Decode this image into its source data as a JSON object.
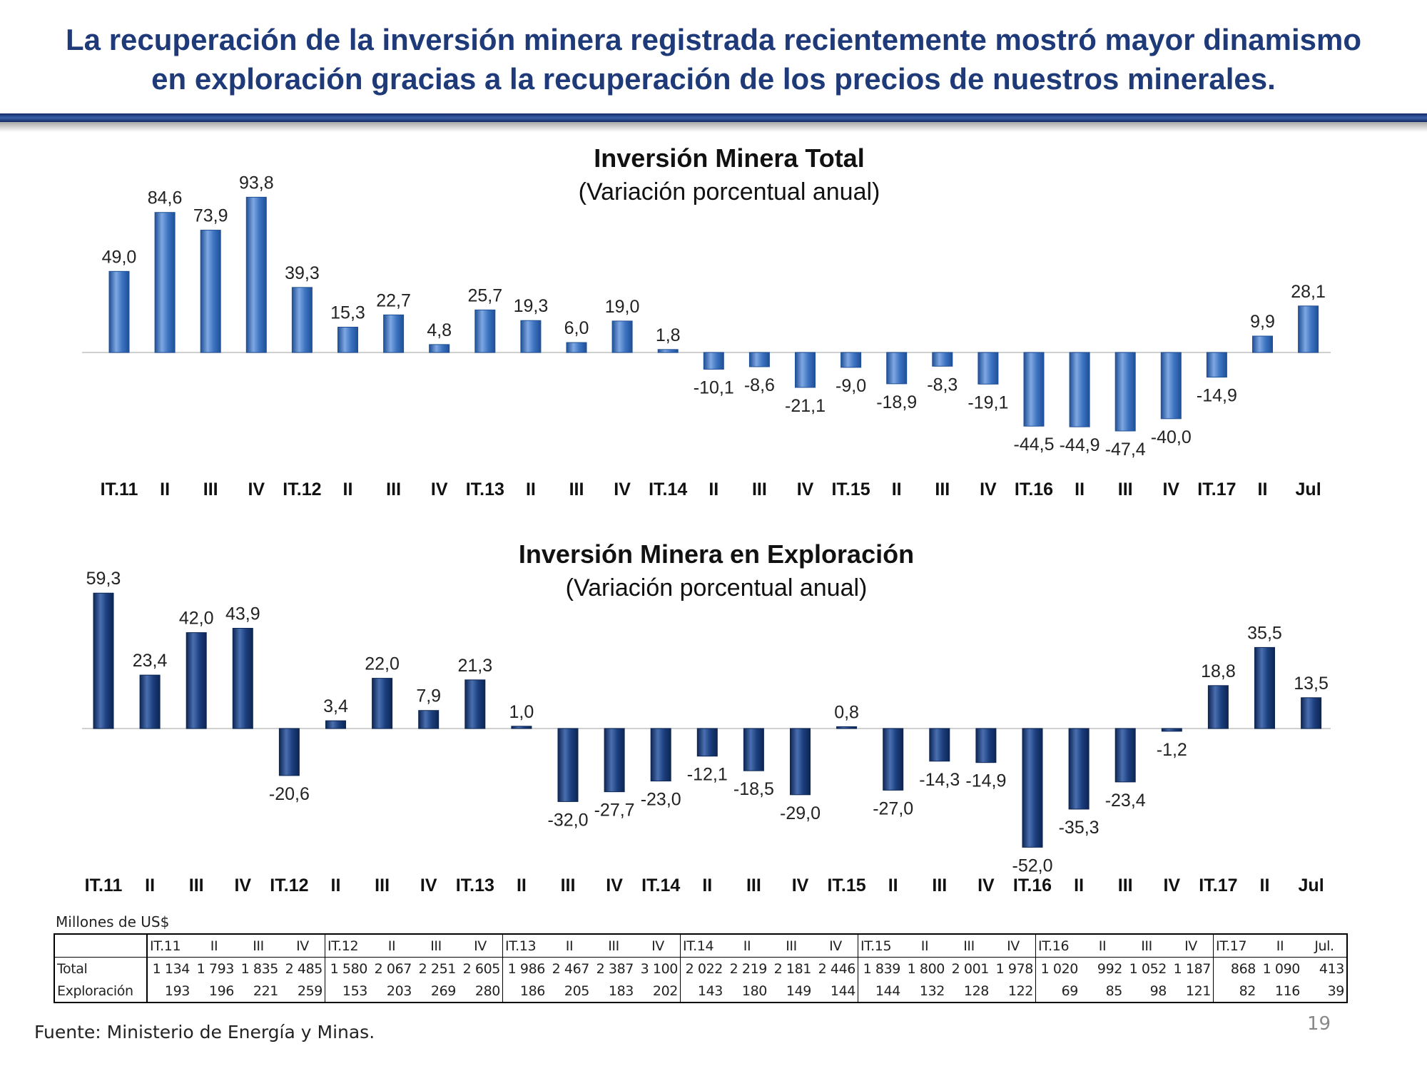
{
  "page": {
    "title_line1": "La recuperación de la inversión minera registrada recientemente mostró mayor dinamismo",
    "title_line2": "en exploración gracias a la recuperación de los precios de nuestros minerales.",
    "unit_label": "Millones de US$",
    "source": "Fuente: Ministerio de Energía y Minas.",
    "page_number": "19"
  },
  "colors": {
    "title": "#1f3a78",
    "bar_total": "#3d74c2",
    "bar_total_light": "#7fa8e2",
    "bar_total_dark": "#1f4f96",
    "bar_expl": "#1c3f7e",
    "bar_expl_light": "#4a6fb0",
    "bar_expl_dark": "#0d2553"
  },
  "chart_data": [
    {
      "type": "bar",
      "title": "Inversión Minera Total",
      "subtitle": "(Variación porcentual anual)",
      "categories": [
        "IT.11",
        "II",
        "III",
        "IV",
        "IT.12",
        "II",
        "III",
        "IV",
        "IT.13",
        "II",
        "III",
        "IV",
        "IT.14",
        "II",
        "III",
        "IV",
        "IT.15",
        "II",
        "III",
        "IV",
        "IT.16",
        "II",
        "III",
        "IV",
        "IT.17",
        "II",
        "Jul"
      ],
      "values": [
        49.0,
        84.6,
        73.9,
        93.8,
        39.3,
        15.3,
        22.7,
        4.8,
        25.7,
        19.3,
        6.0,
        19.0,
        1.8,
        -10.1,
        -8.6,
        -21.1,
        -9.0,
        -18.9,
        -8.3,
        -19.1,
        -44.5,
        -44.9,
        -47.4,
        -40.0,
        -14.9,
        9.9,
        28.1
      ],
      "labels": [
        "49,0",
        "84,6",
        "73,9",
        "93,8",
        "39,3",
        "15,3",
        "22,7",
        "4,8",
        "25,7",
        "19,3",
        "6,0",
        "19,0",
        "1,8",
        "-10,1",
        "-8,6",
        "-21,1",
        "-9,0",
        "-18,9",
        "-8,3",
        "-19,1",
        "-44,5",
        "-44,9",
        "-47,4",
        "-40,0",
        "-14,9",
        "9,9",
        "28,1"
      ],
      "xlabel": "",
      "ylabel": "",
      "ylim": [
        -50,
        100
      ]
    },
    {
      "type": "bar",
      "title": "Inversión Minera en Exploración",
      "subtitle": "(Variación porcentual anual)",
      "categories": [
        "IT.11",
        "II",
        "III",
        "IV",
        "IT.12",
        "II",
        "III",
        "IV",
        "IT.13",
        "II",
        "III",
        "IV",
        "IT.14",
        "II",
        "III",
        "IV",
        "IT.15",
        "II",
        "III",
        "IV",
        "IT.16",
        "II",
        "III",
        "IV",
        "IT.17",
        "II",
        "Jul"
      ],
      "values": [
        59.3,
        23.4,
        42.0,
        43.9,
        -20.6,
        3.4,
        22.0,
        7.9,
        21.3,
        1.0,
        -32.0,
        -27.7,
        -23.0,
        -12.1,
        -18.5,
        -29.0,
        0.8,
        -27.0,
        -14.3,
        -14.9,
        -52.0,
        -35.3,
        -23.4,
        -1.2,
        18.8,
        35.5,
        13.5
      ],
      "labels": [
        "59,3",
        "23,4",
        "42,0",
        "43,9",
        "-20,6",
        "3,4",
        "22,0",
        "7,9",
        "21,3",
        "1,0",
        "-32,0",
        "-27,7",
        "-23,0",
        "-12,1",
        "-18,5",
        "-29,0",
        "0,8",
        "-27,0",
        "-14,3",
        "-14,9",
        "-52,0",
        "-35,3",
        "-23,4",
        "-1,2",
        "18,8",
        "35,5",
        "13,5"
      ],
      "xlabel": "",
      "ylabel": "",
      "ylim": [
        -60,
        70
      ]
    }
  ],
  "table": {
    "header_label": "",
    "headers": [
      "IT.11",
      "II",
      "III",
      "IV",
      "IT.12",
      "II",
      "III",
      "IV",
      "IT.13",
      "II",
      "III",
      "IV",
      "IT.14",
      "II",
      "III",
      "IV",
      "IT.15",
      "II",
      "III",
      "IV",
      "IT.16",
      "II",
      "III",
      "IV",
      "IT.17",
      "II",
      "Jul."
    ],
    "rows": [
      {
        "label": "Total",
        "values": [
          "1 134",
          "1 793",
          "1 835",
          "2 485",
          "1 580",
          "2 067",
          "2 251",
          "2 605",
          "1 986",
          "2 467",
          "2 387",
          "3 100",
          "2 022",
          "2 219",
          "2 181",
          "2 446",
          "1 839",
          "1 800",
          "2 001",
          "1 978",
          "1 020",
          "992",
          "1 052",
          "1 187",
          "868",
          "1 090",
          "413"
        ]
      },
      {
        "label": "Exploración",
        "values": [
          "193",
          "196",
          "221",
          "259",
          "153",
          "203",
          "269",
          "280",
          "186",
          "205",
          "183",
          "202",
          "143",
          "180",
          "149",
          "144",
          "144",
          "132",
          "128",
          "122",
          "69",
          "85",
          "98",
          "121",
          "82",
          "116",
          "39"
        ]
      }
    ]
  }
}
